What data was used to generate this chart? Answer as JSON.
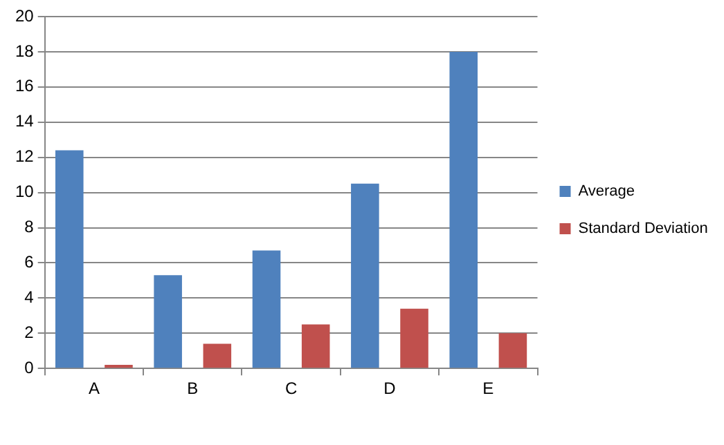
{
  "chart_data": {
    "type": "bar",
    "categories": [
      "A",
      "B",
      "C",
      "D",
      "E"
    ],
    "series": [
      {
        "name": "Average",
        "color": "#4f81bd",
        "values": [
          12.4,
          5.3,
          6.7,
          10.5,
          18
        ]
      },
      {
        "name": "Standard Deviation",
        "color": "#c0504d",
        "values": [
          0.2,
          1.4,
          2.5,
          3.4,
          2.0
        ]
      }
    ],
    "ylim": [
      0,
      20
    ],
    "yticks": [
      0,
      2,
      4,
      6,
      8,
      10,
      12,
      14,
      16,
      18,
      20
    ],
    "grid": "y",
    "legend": "right"
  }
}
